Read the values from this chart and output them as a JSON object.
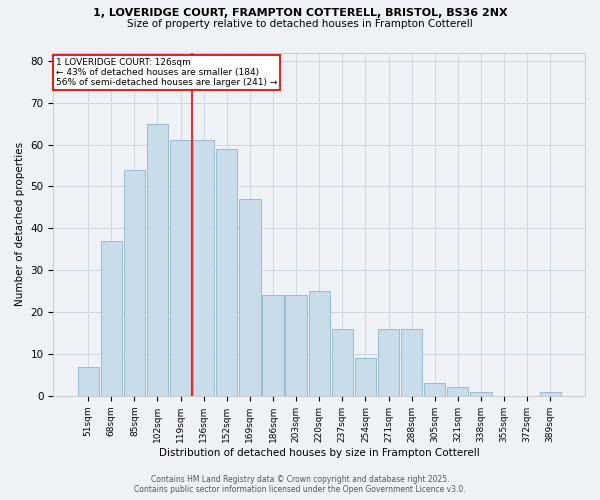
{
  "title1": "1, LOVERIDGE COURT, FRAMPTON COTTERELL, BRISTOL, BS36 2NX",
  "title2": "Size of property relative to detached houses in Frampton Cotterell",
  "xlabel": "Distribution of detached houses by size in Frampton Cotterell",
  "ylabel": "Number of detached properties",
  "categories": [
    "51sqm",
    "68sqm",
    "85sqm",
    "102sqm",
    "119sqm",
    "136sqm",
    "152sqm",
    "169sqm",
    "186sqm",
    "203sqm",
    "220sqm",
    "237sqm",
    "254sqm",
    "271sqm",
    "288sqm",
    "305sqm",
    "321sqm",
    "338sqm",
    "355sqm",
    "372sqm",
    "389sqm"
  ],
  "values": [
    7,
    37,
    54,
    65,
    61,
    61,
    59,
    47,
    24,
    24,
    25,
    16,
    9,
    16,
    16,
    3,
    2,
    1,
    0,
    0,
    1
  ],
  "bar_color": "#c8dcea",
  "bar_edge_color": "#8fb4cc",
  "grid_color": "#cdd8e3",
  "bg_color": "#eef2f7",
  "red_line_x": 4.5,
  "annotation_title": "1 LOVERIDGE COURT: 126sqm",
  "annotation_line1": "← 43% of detached houses are smaller (184)",
  "annotation_line2": "56% of semi-detached houses are larger (241) →",
  "footer1": "Contains HM Land Registry data © Crown copyright and database right 2025.",
  "footer2": "Contains public sector information licensed under the Open Government Licence v3.0.",
  "ylim": [
    0,
    82
  ],
  "yticks": [
    0,
    10,
    20,
    30,
    40,
    50,
    60,
    70,
    80
  ]
}
